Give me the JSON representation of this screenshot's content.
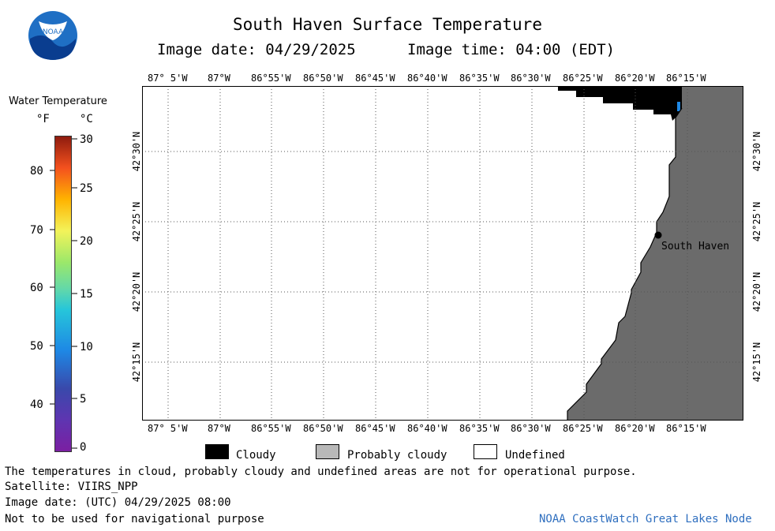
{
  "header": {
    "title": "South Haven Surface Temperature",
    "image_date_text": "Image date: 04/29/2025",
    "image_time_text": "Image time: 04:00 (EDT)"
  },
  "logo": {
    "name": "noaa-logo",
    "text": "NOAA"
  },
  "colorbar": {
    "title": "Water Temperature",
    "unit_f": "°F",
    "unit_c": "°C",
    "f_ticks": [
      "80",
      "70",
      "60",
      "50",
      "40"
    ],
    "c_ticks": [
      "30",
      "25",
      "20",
      "15",
      "10",
      "5",
      "0"
    ]
  },
  "map": {
    "lon_ticks": [
      "87° 5'W",
      "87°W",
      "86°55'W",
      "86°50'W",
      "86°45'W",
      "86°40'W",
      "86°35'W",
      "86°30'W",
      "86°25'W",
      "86°20'W",
      "86°15'W"
    ],
    "lat_ticks": [
      "42°30'N",
      "42°25'N",
      "42°20'N",
      "42°15'N"
    ],
    "place_label": "South Haven",
    "colors": {
      "land": "#6b6b6b",
      "cloud": "#000000",
      "water": "#ffffff",
      "grid": "#555555",
      "warm_pixel": "#1e88e5"
    }
  },
  "legend": {
    "cloudy": "Cloudy",
    "probably_cloudy": "Probably cloudy",
    "undefined": "Undefined",
    "colors": {
      "cloudy": "#000000",
      "probably_cloudy": "#b8b8b8",
      "undefined": "#ffffff"
    }
  },
  "footer": {
    "note": "The temperatures in cloud, probably cloudy and undefined areas are not for operational purpose.",
    "satellite": "Satellite: VIIRS_NPP",
    "utc_date": "Image date: (UTC) 04/29/2025  08:00",
    "nav_warning": "Not to be used for navigational purpose",
    "credit": "NOAA CoastWatch Great Lakes Node"
  }
}
